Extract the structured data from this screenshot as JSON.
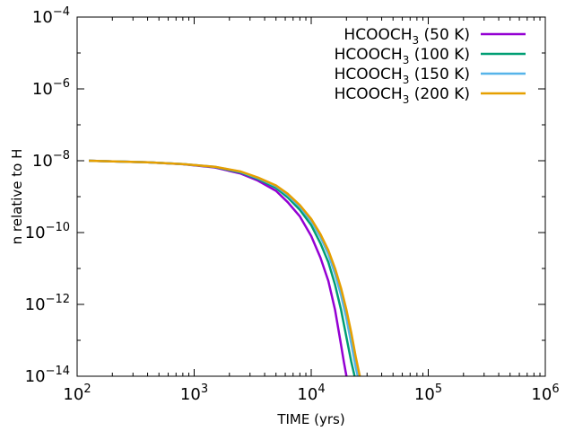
{
  "chart_data": {
    "type": "line",
    "title": "",
    "xlabel": "TIME (yrs)",
    "ylabel": "n relative to H",
    "xscale": "log",
    "yscale": "log",
    "xlim": [
      100,
      1000000
    ],
    "ylim": [
      1e-14,
      0.0001
    ],
    "grid": false,
    "legend_position": "top-right",
    "x_ticks": [
      {
        "value": 100,
        "base": "10",
        "exp": "2"
      },
      {
        "value": 1000,
        "base": "10",
        "exp": "3"
      },
      {
        "value": 10000,
        "base": "10",
        "exp": "4"
      },
      {
        "value": 100000,
        "base": "10",
        "exp": "5"
      },
      {
        "value": 1000000,
        "base": "10",
        "exp": "6"
      }
    ],
    "y_ticks": [
      {
        "value": 1e-14,
        "base": "10",
        "exp": "−14"
      },
      {
        "value": 1e-12,
        "base": "10",
        "exp": "−12"
      },
      {
        "value": 1e-10,
        "base": "10",
        "exp": "−10"
      },
      {
        "value": 1e-08,
        "base": "10",
        "exp": "−8"
      },
      {
        "value": 1e-06,
        "base": "10",
        "exp": "−6"
      },
      {
        "value": 0.0001,
        "base": "10",
        "exp": "−4"
      }
    ],
    "series": [
      {
        "name": "HCOOCH3 (50 K)",
        "label_main": "HCOOCH",
        "label_sub": "3",
        "label_tail": " (50 K)",
        "color": "#9400d3",
        "points": [
          [
            126,
            1e-08
          ],
          [
            200,
            9.6e-09
          ],
          [
            400,
            9e-09
          ],
          [
            800,
            8e-09
          ],
          [
            1500,
            6.5e-09
          ],
          [
            2500,
            4.4e-09
          ],
          [
            3500,
            2.8e-09
          ],
          [
            5000,
            1.45e-09
          ],
          [
            6300,
            7e-10
          ],
          [
            8000,
            2.8e-10
          ],
          [
            10000,
            8e-11
          ],
          [
            12000,
            2e-11
          ],
          [
            14000,
            4.5e-12
          ],
          [
            16000,
            7e-13
          ],
          [
            17700,
            1e-13
          ],
          [
            19000,
            2.5e-14
          ],
          [
            20000,
            1e-14
          ]
        ]
      },
      {
        "name": "HCOOCH3 (100 K)",
        "label_main": "HCOOCH",
        "label_sub": "3",
        "label_tail": " (100 K)",
        "color": "#009e73",
        "points": [
          [
            126,
            1e-08
          ],
          [
            200,
            9.6e-09
          ],
          [
            400,
            9e-09
          ],
          [
            800,
            8.1e-09
          ],
          [
            1500,
            6.7e-09
          ],
          [
            2500,
            4.7e-09
          ],
          [
            3500,
            3.1e-09
          ],
          [
            5000,
            1.75e-09
          ],
          [
            6300,
            9.5e-10
          ],
          [
            8000,
            4.3e-10
          ],
          [
            10000,
            1.6e-10
          ],
          [
            12000,
            5e-11
          ],
          [
            14000,
            1.5e-11
          ],
          [
            16000,
            3.5e-12
          ],
          [
            18000,
            7e-13
          ],
          [
            20000,
            1.2e-13
          ],
          [
            22000,
            2.5e-14
          ],
          [
            23500,
            1e-14
          ]
        ]
      },
      {
        "name": "HCOOCH3 (150 K)",
        "label_main": "HCOOCH",
        "label_sub": "3",
        "label_tail": " (150 K)",
        "color": "#56b4e9",
        "points": [
          [
            126,
            1e-08
          ],
          [
            200,
            9.6e-09
          ],
          [
            400,
            9e-09
          ],
          [
            800,
            8.1e-09
          ],
          [
            1500,
            6.8e-09
          ],
          [
            2500,
            4.9e-09
          ],
          [
            3500,
            3.3e-09
          ],
          [
            5000,
            1.95e-09
          ],
          [
            6300,
            1.1e-09
          ],
          [
            8000,
            5.2e-10
          ],
          [
            10000,
            2.1e-10
          ],
          [
            12000,
            7.5e-11
          ],
          [
            14000,
            2.5e-11
          ],
          [
            16000,
            7e-12
          ],
          [
            18000,
            1.8e-12
          ],
          [
            20000,
            4e-13
          ],
          [
            22000,
            8e-14
          ],
          [
            24000,
            1.8e-14
          ],
          [
            25000,
            1e-14
          ]
        ]
      },
      {
        "name": "HCOOCH3 (200 K)",
        "label_main": "HCOOCH",
        "label_sub": "3",
        "label_tail": " (200 K)",
        "color": "#e69f00",
        "points": [
          [
            126,
            1e-08
          ],
          [
            200,
            9.6e-09
          ],
          [
            400,
            9e-09
          ],
          [
            800,
            8.1e-09
          ],
          [
            1500,
            6.8e-09
          ],
          [
            2500,
            5e-09
          ],
          [
            3500,
            3.4e-09
          ],
          [
            5000,
            2.05e-09
          ],
          [
            6300,
            1.2e-09
          ],
          [
            8000,
            5.8e-10
          ],
          [
            10000,
            2.4e-10
          ],
          [
            12000,
            9e-11
          ],
          [
            14000,
            3.2e-11
          ],
          [
            16000,
            1e-11
          ],
          [
            18000,
            2.8e-12
          ],
          [
            20000,
            7e-13
          ],
          [
            22000,
            1.6e-13
          ],
          [
            24000,
            3.5e-14
          ],
          [
            26000,
            1e-14
          ]
        ]
      }
    ]
  }
}
